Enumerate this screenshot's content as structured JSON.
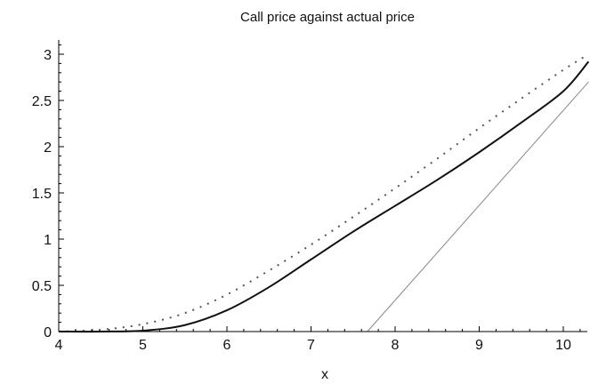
{
  "chart_data": {
    "type": "line",
    "title": "Call price  against  actual price",
    "xlabel": "x",
    "ylabel": "",
    "xlim": [
      4,
      10.3
    ],
    "ylim": [
      0,
      3.1
    ],
    "grid": false,
    "legend": "none",
    "x_ticks": [
      "4",
      "5",
      "6",
      "7",
      "8",
      "9",
      "10"
    ],
    "y_ticks": [
      "0",
      "0.5",
      "1",
      "1.5",
      "2",
      "2.5",
      "3"
    ],
    "series": [
      {
        "style": "dotted",
        "color": "#555555",
        "x": [
          4.0,
          4.5,
          5.0,
          5.5,
          6.0,
          6.5,
          7.0,
          7.5,
          8.0,
          8.5,
          9.0,
          9.5,
          10.0,
          10.3
        ],
        "y": [
          0.0,
          0.02,
          0.08,
          0.2,
          0.4,
          0.66,
          0.94,
          1.24,
          1.55,
          1.87,
          2.2,
          2.52,
          2.83,
          3.0
        ]
      },
      {
        "style": "solid",
        "color": "#111111",
        "x": [
          4.0,
          4.5,
          5.0,
          5.5,
          6.0,
          6.5,
          7.0,
          7.5,
          8.0,
          8.5,
          9.0,
          9.5,
          10.0,
          10.3
        ],
        "y": [
          0.0,
          0.0,
          0.01,
          0.07,
          0.23,
          0.48,
          0.78,
          1.08,
          1.36,
          1.64,
          1.94,
          2.26,
          2.6,
          2.92
        ]
      },
      {
        "style": "solid-thin",
        "color": "#888888",
        "x": [
          7.67,
          10.3
        ],
        "y": [
          0.0,
          2.7
        ]
      }
    ]
  }
}
